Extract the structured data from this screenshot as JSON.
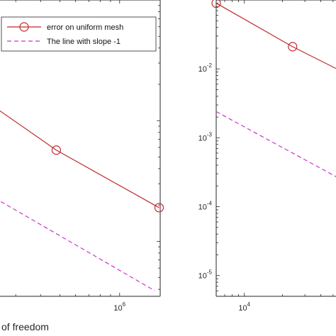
{
  "chart_data": [
    {
      "type": "line",
      "scale": "loglog",
      "xlabel": "of freedom",
      "ylabel": "",
      "x_ticks": [
        {
          "base": "10",
          "exp": "6",
          "value": 1000000
        }
      ],
      "y_ticks": [],
      "legend": {
        "placement": "top-right",
        "entries": [
          {
            "label": "error on uniform mesh",
            "series": "error"
          },
          {
            "label": "The line with slope -1",
            "series": "slope"
          }
        ]
      },
      "xlim": [
        250000,
        1600000
      ],
      "ylim": [
        0.00035,
        0.1
      ],
      "series": [
        {
          "key": "error",
          "color": "#c0282e",
          "style": "solid",
          "marker": "circle",
          "x": [
            190000,
            480000,
            1580000
          ],
          "y": [
            0.0165,
            0.0057,
            0.0019
          ]
        },
        {
          "key": "slope",
          "color": "#cc33cc",
          "style": "dashed",
          "marker": "none",
          "x": [
            190000,
            1500000
          ],
          "y": [
            0.0028,
            0.00039
          ]
        }
      ]
    },
    {
      "type": "line",
      "scale": "loglog",
      "xlabel": "",
      "ylabel": "",
      "x_ticks": [
        {
          "base": "10",
          "exp": "4",
          "value": 10000
        }
      ],
      "y_ticks": [
        {
          "base": "10",
          "exp": "-2",
          "value": 0.01
        },
        {
          "base": "10",
          "exp": "-3",
          "value": 0.001
        },
        {
          "base": "10",
          "exp": "-4",
          "value": 0.0001
        },
        {
          "base": "10",
          "exp": "-5",
          "value": 1e-05
        }
      ],
      "xlim": [
        6000,
        60000
      ],
      "ylim": [
        5e-06,
        0.1
      ],
      "series": [
        {
          "key": "error",
          "color": "#c0282e",
          "style": "solid",
          "marker": "circle",
          "x": [
            6000,
            24000,
            60000
          ],
          "y": [
            0.09,
            0.021,
            0.009
          ]
        },
        {
          "key": "slope",
          "color": "#cc33cc",
          "style": "dashed",
          "marker": "none",
          "x": [
            6000,
            60000
          ],
          "y": [
            0.0024,
            0.00024
          ]
        }
      ]
    }
  ]
}
